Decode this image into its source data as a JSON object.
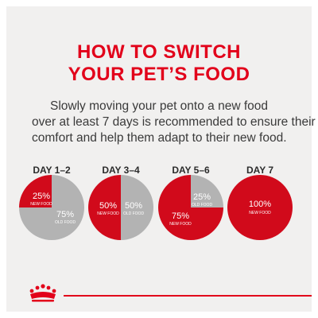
{
  "title": {
    "line1": "HOW TO SWITCH",
    "line2": "YOUR PET’S FOOD"
  },
  "description": {
    "line1": "Slowly moving your pet onto a new food",
    "line2": "over at least 7 days is recommended to ensure their",
    "line3": "comfort and help them adapt to their new food."
  },
  "colors": {
    "new_food": "#d10a1b",
    "old_food": "#b3b3b3",
    "title": "#e2001a",
    "text": "#3a3a3a",
    "background": "#f1f0ef"
  },
  "chart_data": {
    "type": "pie",
    "categories": [
      "DAY 1–2",
      "DAY 3–4",
      "DAY 5–6",
      "DAY 7"
    ],
    "series": [
      {
        "name": "NEW FOOD",
        "values": [
          25,
          50,
          75,
          100
        ]
      },
      {
        "name": "OLD FOOD",
        "values": [
          75,
          50,
          25,
          0
        ]
      }
    ],
    "labels": [
      {
        "new": "25%",
        "old": "75%"
      },
      {
        "new": "50%",
        "old": "50%"
      },
      {
        "new": "75%",
        "old": "25%"
      },
      {
        "new": "100%",
        "old": ""
      }
    ]
  },
  "brand": {
    "logo_icon": "crown-icon"
  }
}
